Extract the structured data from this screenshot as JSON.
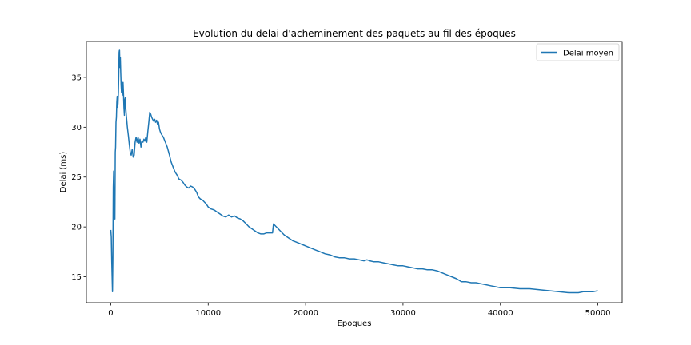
{
  "chart_data": {
    "type": "line",
    "title": "Evolution du delai d'acheminement des paquets au fil des époques",
    "xlabel": "Epoques",
    "ylabel": "Delai (ms)",
    "xlim": [
      -2500,
      52500
    ],
    "ylim": [
      12.4,
      38.6
    ],
    "xticks": [
      0,
      10000,
      20000,
      30000,
      40000,
      50000
    ],
    "xtick_labels": [
      "0",
      "10000",
      "20000",
      "30000",
      "40000",
      "50000"
    ],
    "yticks": [
      15,
      20,
      25,
      30,
      35
    ],
    "ytick_labels": [
      "15",
      "20",
      "25",
      "30",
      "35"
    ],
    "grid": false,
    "legend_position": "top-right",
    "series": [
      {
        "name": "Delai moyen",
        "color": "#1f77b4",
        "points": [
          [
            0,
            19.7
          ],
          [
            50,
            19.0
          ],
          [
            100,
            16.5
          ],
          [
            150,
            14.5
          ],
          [
            180,
            13.5
          ],
          [
            220,
            17.0
          ],
          [
            260,
            24.0
          ],
          [
            300,
            25.6
          ],
          [
            340,
            22.0
          ],
          [
            380,
            21.0
          ],
          [
            420,
            20.8
          ],
          [
            460,
            27.5
          ],
          [
            500,
            28.0
          ],
          [
            540,
            30.5
          ],
          [
            580,
            31.0
          ],
          [
            620,
            32.5
          ],
          [
            660,
            33.1
          ],
          [
            700,
            32.0
          ],
          [
            740,
            32.4
          ],
          [
            780,
            33.5
          ],
          [
            820,
            35.0
          ],
          [
            860,
            37.5
          ],
          [
            900,
            37.8
          ],
          [
            940,
            36.0
          ],
          [
            980,
            37.0
          ],
          [
            1020,
            35.5
          ],
          [
            1060,
            34.2
          ],
          [
            1100,
            33.5
          ],
          [
            1140,
            34.5
          ],
          [
            1180,
            33.2
          ],
          [
            1220,
            34.2
          ],
          [
            1260,
            34.5
          ],
          [
            1300,
            33.5
          ],
          [
            1350,
            32.0
          ],
          [
            1400,
            31.2
          ],
          [
            1450,
            32.8
          ],
          [
            1500,
            33.0
          ],
          [
            1550,
            31.8
          ],
          [
            1600,
            31.2
          ],
          [
            1700,
            30.0
          ],
          [
            1800,
            29.2
          ],
          [
            1900,
            28.3
          ],
          [
            2000,
            27.5
          ],
          [
            2100,
            27.2
          ],
          [
            2200,
            27.8
          ],
          [
            2300,
            27.0
          ],
          [
            2400,
            27.2
          ],
          [
            2500,
            28.5
          ],
          [
            2600,
            29.0
          ],
          [
            2700,
            28.5
          ],
          [
            2800,
            29.0
          ],
          [
            2900,
            28.4
          ],
          [
            3000,
            28.8
          ],
          [
            3100,
            28.0
          ],
          [
            3200,
            28.6
          ],
          [
            3300,
            28.5
          ],
          [
            3400,
            28.8
          ],
          [
            3500,
            28.6
          ],
          [
            3600,
            29.0
          ],
          [
            3700,
            28.5
          ],
          [
            3800,
            29.5
          ],
          [
            3900,
            30.5
          ],
          [
            4000,
            31.5
          ],
          [
            4100,
            31.3
          ],
          [
            4200,
            31.0
          ],
          [
            4300,
            30.8
          ],
          [
            4400,
            30.6
          ],
          [
            4500,
            30.8
          ],
          [
            4600,
            30.5
          ],
          [
            4700,
            30.7
          ],
          [
            4800,
            30.3
          ],
          [
            4900,
            30.5
          ],
          [
            5000,
            29.8
          ],
          [
            5100,
            29.5
          ],
          [
            5200,
            29.3
          ],
          [
            5400,
            29.0
          ],
          [
            5600,
            28.5
          ],
          [
            5800,
            28.0
          ],
          [
            6000,
            27.3
          ],
          [
            6200,
            26.5
          ],
          [
            6400,
            26.0
          ],
          [
            6600,
            25.5
          ],
          [
            6800,
            25.2
          ],
          [
            7000,
            24.8
          ],
          [
            7200,
            24.7
          ],
          [
            7400,
            24.5
          ],
          [
            7600,
            24.2
          ],
          [
            7800,
            24.0
          ],
          [
            8000,
            23.9
          ],
          [
            8200,
            24.1
          ],
          [
            8400,
            24.0
          ],
          [
            8600,
            23.8
          ],
          [
            8800,
            23.5
          ],
          [
            9000,
            23.0
          ],
          [
            9200,
            22.8
          ],
          [
            9400,
            22.7
          ],
          [
            9600,
            22.5
          ],
          [
            9800,
            22.3
          ],
          [
            10000,
            22.0
          ],
          [
            10300,
            21.8
          ],
          [
            10600,
            21.7
          ],
          [
            10900,
            21.5
          ],
          [
            11200,
            21.3
          ],
          [
            11500,
            21.1
          ],
          [
            11800,
            21.0
          ],
          [
            12100,
            21.2
          ],
          [
            12400,
            21.0
          ],
          [
            12700,
            21.1
          ],
          [
            13000,
            20.9
          ],
          [
            13300,
            20.8
          ],
          [
            13600,
            20.6
          ],
          [
            13900,
            20.3
          ],
          [
            14200,
            20.0
          ],
          [
            14500,
            19.8
          ],
          [
            14800,
            19.6
          ],
          [
            15100,
            19.4
          ],
          [
            15400,
            19.3
          ],
          [
            15700,
            19.3
          ],
          [
            16000,
            19.4
          ],
          [
            16300,
            19.4
          ],
          [
            16600,
            19.4
          ],
          [
            16700,
            20.3
          ],
          [
            16900,
            20.1
          ],
          [
            17200,
            19.8
          ],
          [
            17500,
            19.5
          ],
          [
            17800,
            19.2
          ],
          [
            18100,
            19.0
          ],
          [
            18400,
            18.8
          ],
          [
            18700,
            18.6
          ],
          [
            19000,
            18.5
          ],
          [
            19500,
            18.3
          ],
          [
            20000,
            18.1
          ],
          [
            20500,
            17.9
          ],
          [
            21000,
            17.7
          ],
          [
            21500,
            17.5
          ],
          [
            22000,
            17.3
          ],
          [
            22500,
            17.2
          ],
          [
            23000,
            17.0
          ],
          [
            23500,
            16.9
          ],
          [
            24000,
            16.9
          ],
          [
            24500,
            16.8
          ],
          [
            25000,
            16.8
          ],
          [
            25500,
            16.7
          ],
          [
            26000,
            16.6
          ],
          [
            26300,
            16.7
          ],
          [
            26600,
            16.6
          ],
          [
            27000,
            16.5
          ],
          [
            27500,
            16.5
          ],
          [
            28000,
            16.4
          ],
          [
            28500,
            16.3
          ],
          [
            29000,
            16.2
          ],
          [
            29500,
            16.1
          ],
          [
            30000,
            16.1
          ],
          [
            30500,
            16.0
          ],
          [
            31000,
            15.9
          ],
          [
            31500,
            15.8
          ],
          [
            32000,
            15.8
          ],
          [
            32500,
            15.7
          ],
          [
            33000,
            15.7
          ],
          [
            33500,
            15.6
          ],
          [
            34000,
            15.4
          ],
          [
            34500,
            15.2
          ],
          [
            35000,
            15.0
          ],
          [
            35500,
            14.8
          ],
          [
            36000,
            14.5
          ],
          [
            36500,
            14.5
          ],
          [
            37000,
            14.4
          ],
          [
            37500,
            14.4
          ],
          [
            38000,
            14.3
          ],
          [
            38500,
            14.2
          ],
          [
            39000,
            14.1
          ],
          [
            39500,
            14.0
          ],
          [
            40000,
            13.9
          ],
          [
            41000,
            13.9
          ],
          [
            42000,
            13.8
          ],
          [
            43000,
            13.8
          ],
          [
            44000,
            13.7
          ],
          [
            45000,
            13.6
          ],
          [
            46000,
            13.5
          ],
          [
            47000,
            13.4
          ],
          [
            48000,
            13.4
          ],
          [
            48500,
            13.5
          ],
          [
            49000,
            13.5
          ],
          [
            49500,
            13.5
          ],
          [
            50000,
            13.6
          ]
        ]
      }
    ]
  }
}
